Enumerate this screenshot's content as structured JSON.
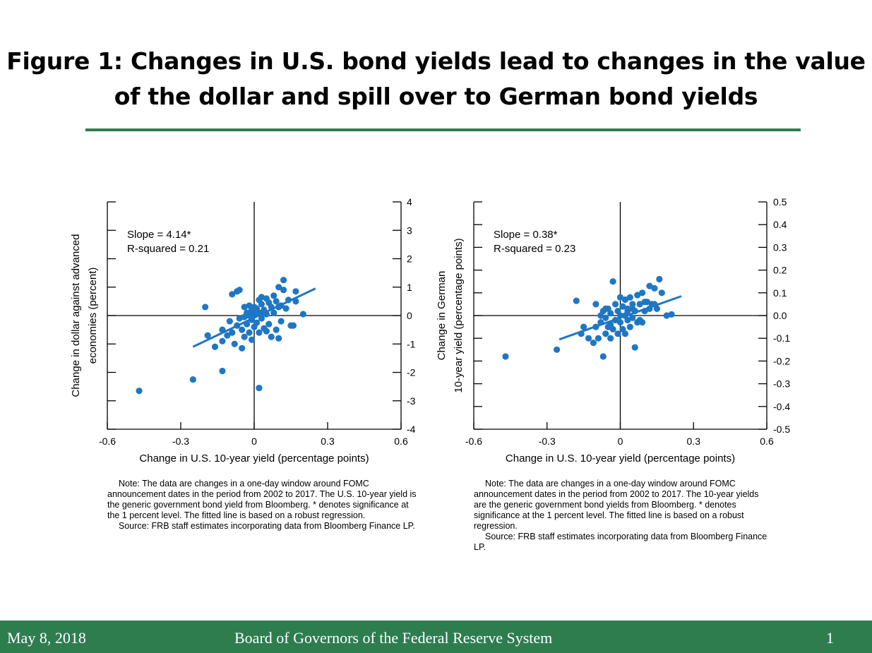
{
  "title": {
    "line1": "Figure 1: Changes in U.S. bond yields lead to changes in the value",
    "line2": "of the dollar and spill over to German bond yields"
  },
  "colors": {
    "accent": "#2e7d4f",
    "marker": "#1f77c4"
  },
  "chart_data": [
    {
      "type": "scatter",
      "title": "",
      "xlabel": "Change in U.S. 10-year yield (percentage points)",
      "ylabel_lines": [
        "Change in dollar against advanced",
        "economies (percent)"
      ],
      "xlim": [
        -0.6,
        0.6
      ],
      "ylim": [
        -4,
        4
      ],
      "x_ticks": [
        -0.6,
        -0.3,
        0,
        0.3,
        0.6
      ],
      "x_tick_labels": [
        "-0.6",
        "-0.3",
        "0",
        "0.3",
        "0.6"
      ],
      "y_ticks": [
        -4,
        -3,
        -2,
        -1,
        0,
        1,
        2,
        3,
        4
      ],
      "y_tick_labels": [
        "-4",
        "-3",
        "-2",
        "-1",
        "0",
        "1",
        "2",
        "3",
        "4"
      ],
      "annotation": [
        "Slope = 4.14*",
        "R-squared = 0.21"
      ],
      "fit_line": {
        "x": [
          -0.25,
          0.25
        ],
        "y": [
          -1.1,
          0.95
        ]
      },
      "points": [
        [
          -0.47,
          -2.65
        ],
        [
          -0.25,
          -2.25
        ],
        [
          -0.13,
          -1.95
        ],
        [
          -0.2,
          0.3
        ],
        [
          -0.19,
          -0.7
        ],
        [
          -0.16,
          -1.1
        ],
        [
          -0.13,
          -0.9
        ],
        [
          -0.13,
          -0.5
        ],
        [
          -0.11,
          -0.7
        ],
        [
          -0.1,
          -0.2
        ],
        [
          -0.09,
          0.75
        ],
        [
          -0.07,
          0.85
        ],
        [
          -0.06,
          0.9
        ],
        [
          -0.09,
          -0.6
        ],
        [
          -0.08,
          -1.0
        ],
        [
          -0.07,
          -0.35
        ],
        [
          -0.06,
          -0.1
        ],
        [
          -0.05,
          -0.5
        ],
        [
          -0.05,
          -1.15
        ],
        [
          -0.04,
          -0.75
        ],
        [
          -0.04,
          -0.05
        ],
        [
          -0.03,
          0.1
        ],
        [
          -0.03,
          -0.3
        ],
        [
          -0.02,
          0.35
        ],
        [
          -0.02,
          -0.6
        ],
        [
          -0.01,
          -0.15
        ],
        [
          -0.01,
          0.2
        ],
        [
          0,
          -0.4
        ],
        [
          0,
          0.05
        ],
        [
          0.01,
          -0.25
        ],
        [
          0.01,
          0.25
        ],
        [
          0.02,
          -0.6
        ],
        [
          0.02,
          0.55
        ],
        [
          0.02,
          0.1
        ],
        [
          0.03,
          0.65
        ],
        [
          0.03,
          -0.1
        ],
        [
          0.03,
          0.4
        ],
        [
          0.04,
          0.2
        ],
        [
          0.04,
          -0.45
        ],
        [
          0.05,
          0.6
        ],
        [
          0.05,
          0.05
        ],
        [
          0.06,
          -0.3
        ],
        [
          0.06,
          0.45
        ],
        [
          0.07,
          -0.75
        ],
        [
          0.07,
          0.3
        ],
        [
          0.08,
          0.1
        ],
        [
          0.08,
          0.7
        ],
        [
          0.09,
          -0.5
        ],
        [
          0.09,
          0.5
        ],
        [
          0.1,
          0.3
        ],
        [
          0.11,
          -0.2
        ],
        [
          0.12,
          0.9
        ],
        [
          0.13,
          0.25
        ],
        [
          0.14,
          0.55
        ],
        [
          0.1,
          1.0
        ],
        [
          0.12,
          1.25
        ],
        [
          0.16,
          -0.35
        ],
        [
          0.17,
          0.85
        ],
        [
          0.15,
          -0.35
        ],
        [
          0.2,
          0.05
        ],
        [
          0.17,
          0.5
        ],
        [
          0.02,
          -2.55
        ],
        [
          0.1,
          -0.8
        ],
        [
          -0.01,
          -0.85
        ],
        [
          0.05,
          -0.55
        ],
        [
          0.0,
          0.3
        ],
        [
          -0.02,
          0.0
        ],
        [
          -0.04,
          0.3
        ],
        [
          0.11,
          0.35
        ],
        [
          0.04,
          0.1
        ]
      ]
    },
    {
      "type": "scatter",
      "title": "",
      "xlabel": "Change in U.S. 10-year yield (percentage points)",
      "ylabel_lines": [
        "Change in German",
        "10-year yield (percentage points)"
      ],
      "xlim": [
        -0.6,
        0.6
      ],
      "ylim": [
        -0.5,
        0.5
      ],
      "x_ticks": [
        -0.6,
        -0.3,
        0,
        0.3,
        0.6
      ],
      "x_tick_labels": [
        "-0.6",
        "-0.3",
        "0",
        "0.3",
        "0.6"
      ],
      "y_ticks": [
        -0.5,
        -0.4,
        -0.3,
        -0.2,
        -0.1,
        0,
        0.1,
        0.2,
        0.3,
        0.4,
        0.5
      ],
      "y_tick_labels": [
        "-0.5",
        "-0.4",
        "-0.3",
        "-0.2",
        "-0.1",
        "0.0",
        "0.1",
        "0.2",
        "0.3",
        "0.4",
        "0.5"
      ],
      "annotation": [
        "Slope = 0.38*",
        "R-squared = 0.23"
      ],
      "fit_line": {
        "x": [
          -0.25,
          0.25
        ],
        "y": [
          -0.105,
          0.085
        ]
      },
      "points": [
        [
          -0.47,
          -0.18
        ],
        [
          -0.26,
          -0.15
        ],
        [
          -0.18,
          0.065
        ],
        [
          -0.16,
          -0.08
        ],
        [
          -0.15,
          -0.05
        ],
        [
          -0.13,
          -0.1
        ],
        [
          -0.11,
          -0.12
        ],
        [
          -0.1,
          -0.05
        ],
        [
          -0.1,
          0.05
        ],
        [
          -0.09,
          -0.1
        ],
        [
          -0.08,
          0.0
        ],
        [
          -0.08,
          -0.03
        ],
        [
          -0.07,
          -0.18
        ],
        [
          -0.07,
          0.02
        ],
        [
          -0.06,
          -0.08
        ],
        [
          -0.06,
          -0.01
        ],
        [
          -0.05,
          0.03
        ],
        [
          -0.05,
          -0.05
        ],
        [
          -0.04,
          -0.1
        ],
        [
          -0.04,
          0.01
        ],
        [
          -0.03,
          0.15
        ],
        [
          -0.03,
          -0.06
        ],
        [
          -0.02,
          -0.02
        ],
        [
          -0.02,
          0.05
        ],
        [
          -0.01,
          -0.08
        ],
        [
          -0.01,
          0.02
        ],
        [
          0,
          0.08
        ],
        [
          0,
          -0.03
        ],
        [
          0.01,
          0.04
        ],
        [
          0.01,
          -0.06
        ],
        [
          0.02,
          0.0
        ],
        [
          0.02,
          0.07
        ],
        [
          0.03,
          -0.02
        ],
        [
          0.03,
          0.02
        ],
        [
          0.04,
          -0.05
        ],
        [
          0.04,
          0.08
        ],
        [
          0.05,
          -0.01
        ],
        [
          0.05,
          0.03
        ],
        [
          0.06,
          -0.14
        ],
        [
          0.06,
          0.02
        ],
        [
          0.07,
          0.09
        ],
        [
          0.07,
          -0.03
        ],
        [
          0.08,
          0.05
        ],
        [
          0.09,
          0.1
        ],
        [
          0.09,
          -0.03
        ],
        [
          0.1,
          0.02
        ],
        [
          0.11,
          0.06
        ],
        [
          0.12,
          0.13
        ],
        [
          0.13,
          0.05
        ],
        [
          0.14,
          0.12
        ],
        [
          0.15,
          0.03
        ],
        [
          0.16,
          0.16
        ],
        [
          0.17,
          0.1
        ],
        [
          0.19,
          0.0
        ],
        [
          0.21,
          0.005
        ],
        [
          0.1,
          0.06
        ],
        [
          0.12,
          0.03
        ],
        [
          0.14,
          0.05
        ],
        [
          -0.04,
          -0.04
        ],
        [
          0.0,
          0.0
        ],
        [
          0.02,
          -0.08
        ],
        [
          0.05,
          0.05
        ],
        [
          -0.06,
          0.03
        ],
        [
          0.03,
          0.03
        ],
        [
          0.08,
          -0.02
        ]
      ]
    }
  ],
  "notes": [
    {
      "note": "Note:  The data are changes in a one-day window around FOMC announcement dates in the period from 2002 to 2017. The U.S. 10-year yield is the generic government bond yield from Bloomberg. * denotes significance at the 1 percent level. The fitted line is based on a robust regression.",
      "source": "Source:  FRB staff estimates incorporating data from Bloomberg Finance LP."
    },
    {
      "note": "Note:  The data are changes in a one-day window around FOMC announcement dates in the period from 2002 to 2017. The 10-year yields are the generic government bond yields from Bloomberg. * denotes significance at the 1 percent level. The fitted line is based on a robust regression.",
      "source": "Source:  FRB staff estimates incorporating data from Bloomberg Finance LP."
    }
  ],
  "footer": {
    "date": "May 8, 2018",
    "org": "Board of Governors of the Federal Reserve System",
    "page": "1"
  }
}
